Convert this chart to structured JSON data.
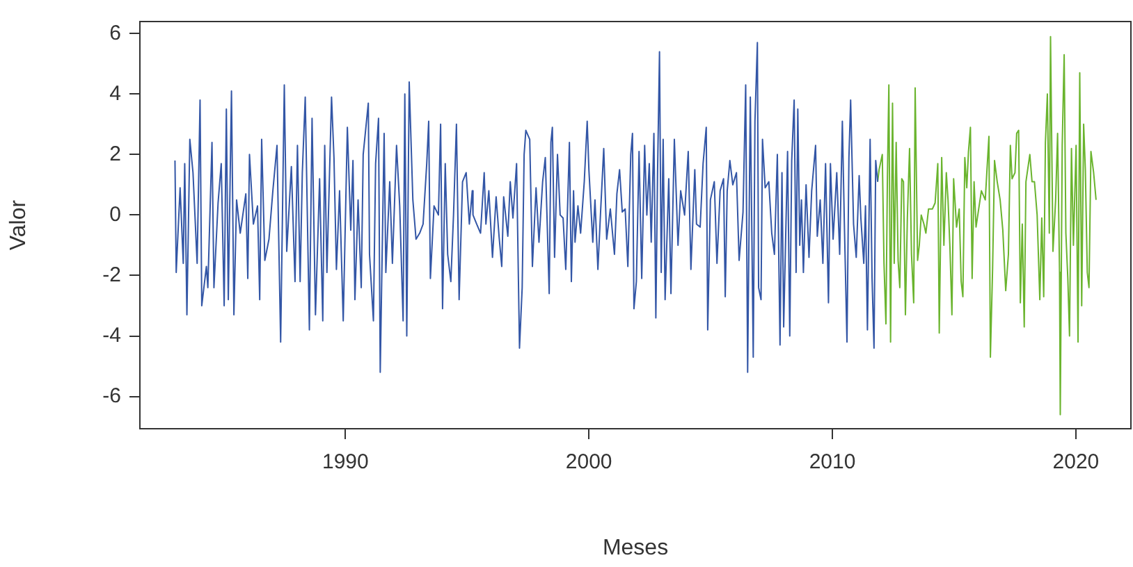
{
  "chart_data": {
    "type": "line",
    "xlabel": "Meses",
    "ylabel": "Valor",
    "xlim": [
      1981.53,
      2022.29
    ],
    "xticks": [
      1990,
      2000,
      2010,
      2020
    ],
    "ylim": [
      -7.09,
      6.42
    ],
    "yticks": [
      -6,
      -4,
      -2,
      0,
      2,
      4,
      6
    ],
    "grid": false,
    "legend": false,
    "marker": "none",
    "line_style": "solid",
    "series": [
      {
        "color": "#3356a6",
        "x": [
          1983.0,
          1983.05,
          1983.21,
          1983.34,
          1983.4,
          1983.49,
          1983.61,
          1983.74,
          1983.91,
          1984.03,
          1984.1,
          1984.29,
          1984.35,
          1984.52,
          1984.6,
          1984.77,
          1984.9,
          1985.02,
          1985.11,
          1985.19,
          1985.32,
          1985.42,
          1985.53,
          1985.68,
          1985.91,
          1985.99,
          1986.06,
          1986.22,
          1986.39,
          1986.48,
          1986.56,
          1986.69,
          1986.86,
          1987.02,
          1987.19,
          1987.34,
          1987.49,
          1987.59,
          1987.78,
          1987.93,
          1988.03,
          1988.14,
          1988.23,
          1988.35,
          1988.52,
          1988.63,
          1988.77,
          1988.94,
          1989.07,
          1989.15,
          1989.24,
          1989.43,
          1989.53,
          1989.63,
          1989.76,
          1989.91,
          1990.08,
          1990.22,
          1990.31,
          1990.39,
          1990.52,
          1990.65,
          1990.73,
          1990.94,
          1990.99,
          1991.15,
          1991.24,
          1991.36,
          1991.43,
          1991.59,
          1991.66,
          1991.82,
          1991.93,
          1992.1,
          1992.23,
          1992.37,
          1992.44,
          1992.52,
          1992.62,
          1992.77,
          1992.9,
          1993.05,
          1993.19,
          1993.34,
          1993.42,
          1993.49,
          1993.64,
          1993.82,
          1993.91,
          1993.99,
          1994.1,
          1994.2,
          1994.33,
          1994.44,
          1994.56,
          1994.67,
          1994.81,
          1994.96,
          1995.09,
          1995.21,
          1995.24,
          1995.39,
          1995.55,
          1995.7,
          1995.77,
          1995.89,
          1996.04,
          1996.19,
          1996.31,
          1996.42,
          1996.5,
          1996.67,
          1996.77,
          1996.88,
          1997.03,
          1997.15,
          1997.26,
          1997.34,
          1997.41,
          1997.57,
          1997.68,
          1997.83,
          1997.95,
          1998.1,
          1998.21,
          1998.37,
          1998.44,
          1998.5,
          1998.59,
          1998.71,
          1998.82,
          1998.94,
          1999.05,
          1999.2,
          1999.28,
          1999.37,
          1999.43,
          1999.55,
          1999.66,
          1999.81,
          1999.93,
          2000.0,
          2000.16,
          2000.25,
          2000.37,
          2000.48,
          2000.61,
          2000.73,
          2000.88,
          2001.05,
          2001.15,
          2001.26,
          2001.37,
          2001.49,
          2001.6,
          2001.72,
          2001.79,
          2001.85,
          2001.95,
          2002.06,
          2002.17,
          2002.29,
          2002.38,
          2002.48,
          2002.56,
          2002.67,
          2002.75,
          2002.82,
          2002.9,
          2002.97,
          2003.05,
          2003.13,
          2003.28,
          2003.37,
          2003.51,
          2003.66,
          2003.77,
          2003.93,
          2004.08,
          2004.19,
          2004.35,
          2004.42,
          2004.57,
          2004.69,
          2004.82,
          2004.88,
          2004.99,
          2005.15,
          2005.26,
          2005.39,
          2005.53,
          2005.6,
          2005.68,
          2005.79,
          2005.91,
          2006.06,
          2006.17,
          2006.33,
          2006.44,
          2006.52,
          2006.63,
          2006.75,
          2006.82,
          2006.92,
          2006.97,
          2007.07,
          2007.13,
          2007.24,
          2007.39,
          2007.51,
          2007.62,
          2007.74,
          2007.85,
          2007.93,
          2008.0,
          2008.16,
          2008.25,
          2008.33,
          2008.43,
          2008.51,
          2008.58,
          2008.66,
          2008.73,
          2008.81,
          2008.92,
          2009.04,
          2009.15,
          2009.31,
          2009.38,
          2009.5,
          2009.61,
          2009.72,
          2009.84,
          2009.92,
          2010.03,
          2010.18,
          2010.3,
          2010.41,
          2010.49,
          2010.6,
          2010.68,
          2010.75,
          2010.87,
          2010.98,
          2011.1,
          2011.17,
          2011.29,
          2011.36,
          2011.44,
          2011.55,
          2011.63,
          2011.71,
          2011.78,
          2011.86
        ],
        "values": [
          1.8,
          -1.9,
          0.9,
          -1.6,
          1.7,
          -3.3,
          2.5,
          1.4,
          -1.6,
          3.8,
          -3.0,
          -1.7,
          -2.4,
          2.4,
          -2.4,
          0.4,
          1.7,
          -3.0,
          3.5,
          -2.8,
          4.1,
          -3.3,
          0.5,
          -0.6,
          0.7,
          -2.1,
          2.0,
          -0.3,
          0.3,
          -2.8,
          2.5,
          -1.5,
          -0.8,
          0.8,
          2.3,
          -4.2,
          4.3,
          -1.2,
          1.6,
          -2.2,
          2.3,
          -2.2,
          1.4,
          3.9,
          -3.8,
          3.2,
          -3.3,
          1.2,
          -3.5,
          2.3,
          -1.9,
          3.9,
          1.9,
          -1.8,
          0.8,
          -3.5,
          2.9,
          -0.5,
          1.8,
          -2.8,
          0.5,
          -2.4,
          2.0,
          3.7,
          -1.3,
          -3.5,
          1.7,
          3.2,
          -5.2,
          2.7,
          -1.9,
          1.1,
          -1.6,
          2.3,
          0.3,
          -3.5,
          4.0,
          -4.0,
          4.4,
          0.5,
          -0.8,
          -0.6,
          -0.3,
          1.7,
          3.1,
          -2.1,
          0.3,
          0.0,
          3.0,
          -3.1,
          1.7,
          -1.3,
          -2.2,
          0.0,
          3.0,
          -2.8,
          1.1,
          1.4,
          -0.3,
          0.8,
          0.0,
          -0.3,
          -0.6,
          1.4,
          -0.3,
          0.8,
          -1.4,
          0.6,
          -0.7,
          -1.7,
          0.6,
          -0.7,
          1.1,
          -0.1,
          1.7,
          -4.4,
          -2.4,
          2.0,
          2.8,
          2.5,
          -1.7,
          0.9,
          -0.9,
          1.1,
          1.9,
          -2.6,
          2.4,
          2.9,
          -1.4,
          2.0,
          0.0,
          -0.1,
          -1.8,
          2.4,
          -2.2,
          0.8,
          -0.9,
          0.3,
          -0.6,
          1.1,
          3.1,
          1.5,
          -0.9,
          0.5,
          -1.8,
          0.1,
          2.2,
          -0.8,
          0.2,
          -1.3,
          0.7,
          1.5,
          0.1,
          0.2,
          -1.7,
          2.0,
          2.7,
          -3.1,
          -2.2,
          2.1,
          -2.1,
          2.3,
          0.0,
          1.7,
          -0.9,
          2.7,
          -3.4,
          1.4,
          5.4,
          -1.9,
          2.5,
          -2.8,
          1.2,
          -2.6,
          2.5,
          -1.0,
          0.8,
          0.0,
          2.1,
          -1.8,
          1.5,
          -0.3,
          -0.4,
          1.7,
          2.9,
          -3.8,
          0.5,
          1.1,
          -1.6,
          0.8,
          1.2,
          -2.7,
          0.8,
          1.8,
          1.0,
          1.4,
          -1.5,
          0.1,
          4.3,
          -5.2,
          3.9,
          -4.7,
          3.1,
          5.7,
          -2.4,
          -2.8,
          2.5,
          0.9,
          1.1,
          -0.6,
          -1.3,
          2.0,
          -4.3,
          1.4,
          -3.7,
          2.1,
          -4.0,
          1.8,
          3.8,
          -1.9,
          3.5,
          -1.0,
          0.5,
          -1.9,
          1.0,
          -1.4,
          0.8,
          2.3,
          -0.7,
          0.5,
          -1.6,
          1.7,
          -2.9,
          1.7,
          -0.8,
          1.4,
          -1.3,
          3.1,
          -0.2,
          -4.2,
          1.9,
          3.8,
          -0.3,
          -1.4,
          1.3,
          -0.1,
          -1.6,
          0.3,
          -3.8,
          2.5,
          -2.1,
          -4.4,
          1.8,
          1.1
        ]
      },
      {
        "color": "#6ab42e",
        "x": [
          2011.86,
          2011.92,
          2012.05,
          2012.12,
          2012.2,
          2012.26,
          2012.32,
          2012.39,
          2012.47,
          2012.54,
          2012.62,
          2012.7,
          2012.77,
          2012.85,
          2012.92,
          2013.0,
          2013.08,
          2013.17,
          2013.25,
          2013.34,
          2013.4,
          2013.5,
          2013.57,
          2013.65,
          2013.76,
          2013.84,
          2013.95,
          2014.11,
          2014.22,
          2014.33,
          2014.39,
          2014.49,
          2014.58,
          2014.68,
          2014.75,
          2014.83,
          2014.91,
          2014.98,
          2015.1,
          2015.21,
          2015.29,
          2015.36,
          2015.44,
          2015.52,
          2015.59,
          2015.67,
          2015.74,
          2015.82,
          2015.9,
          2016.01,
          2016.12,
          2016.28,
          2016.35,
          2016.43,
          2016.49,
          2016.58,
          2016.66,
          2016.77,
          2016.89,
          2017.0,
          2017.12,
          2017.23,
          2017.31,
          2017.38,
          2017.5,
          2017.57,
          2017.65,
          2017.72,
          2017.8,
          2017.88,
          2017.95,
          2018.11,
          2018.2,
          2018.3,
          2018.41,
          2018.52,
          2018.6,
          2018.68,
          2018.75,
          2018.83,
          2018.91,
          2018.96,
          2019.06,
          2019.17,
          2019.25,
          2019.33,
          2019.36,
          2019.44,
          2019.52,
          2019.59,
          2019.67,
          2019.74,
          2019.82,
          2019.9,
          2020.01,
          2020.09,
          2020.16,
          2020.24,
          2020.32,
          2020.39,
          2020.47,
          2020.54,
          2020.62,
          2020.73,
          2020.83
        ],
        "values": [
          1.1,
          1.5,
          2.0,
          -1.6,
          -3.6,
          1.2,
          4.3,
          -4.2,
          3.7,
          -1.6,
          2.4,
          -1.5,
          -2.4,
          1.2,
          1.1,
          -3.3,
          -0.1,
          2.2,
          -1.3,
          -2.9,
          4.2,
          -1.5,
          -1.0,
          0.0,
          -0.3,
          -0.6,
          0.2,
          0.2,
          0.4,
          1.7,
          -3.9,
          1.9,
          -1.0,
          1.4,
          0.5,
          -1.1,
          -3.3,
          1.2,
          -0.4,
          0.2,
          -2.2,
          -2.7,
          1.9,
          0.9,
          2.1,
          2.9,
          -2.1,
          1.1,
          -0.4,
          0.2,
          0.8,
          0.5,
          1.5,
          2.6,
          -4.7,
          -1.8,
          1.8,
          1.1,
          0.5,
          -0.5,
          -2.5,
          -1.3,
          2.3,
          1.2,
          1.4,
          2.7,
          2.8,
          -2.9,
          -0.3,
          -3.7,
          1.1,
          2.0,
          1.1,
          1.1,
          0.0,
          -2.8,
          -0.1,
          -2.7,
          2.4,
          4.0,
          -0.6,
          5.9,
          -1.2,
          0.5,
          2.7,
          -1.9,
          -6.6,
          2.3,
          5.3,
          -0.6,
          -2.1,
          -4.0,
          2.2,
          -1.0,
          2.3,
          -4.2,
          4.7,
          -3.0,
          3.0,
          1.5,
          -1.9,
          -2.4,
          2.1,
          1.4,
          0.5
        ]
      }
    ]
  }
}
